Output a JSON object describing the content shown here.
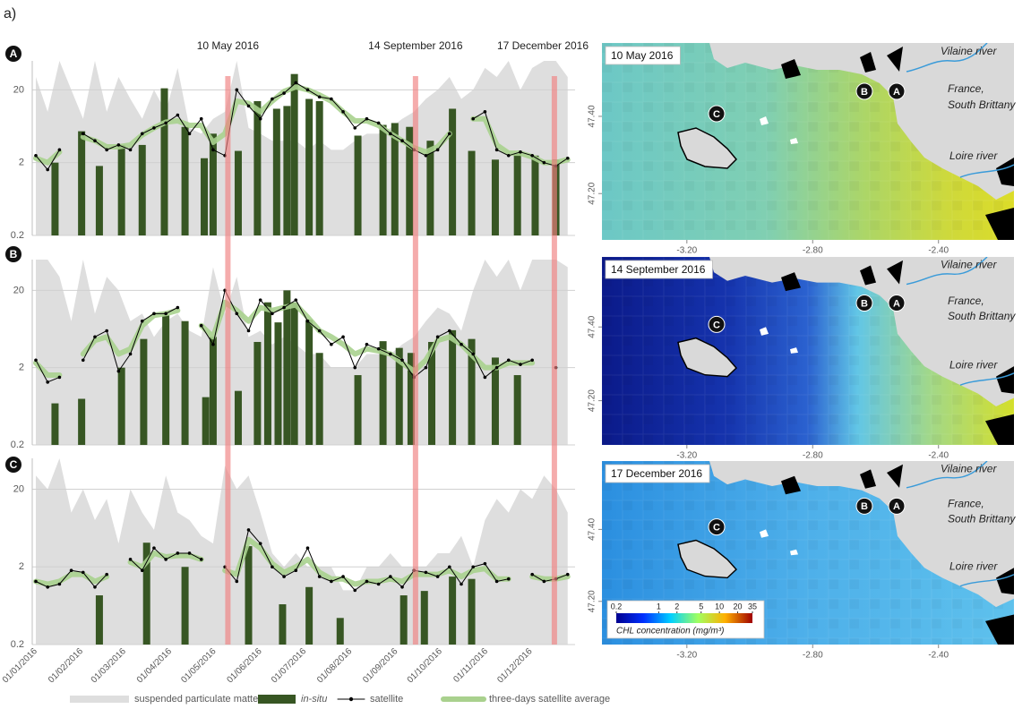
{
  "panel_label": "a)",
  "events": [
    {
      "label": "10 May 2016",
      "date": "10/05/2016"
    },
    {
      "label": "14 September 2016",
      "date": "14/09/2016"
    },
    {
      "label": "17 December 2016",
      "date": "17/12/2016"
    }
  ],
  "chart_data": [
    {
      "type": "combo",
      "label": "A",
      "log": true,
      "grid": true,
      "ylim": [
        0.2,
        50
      ],
      "yticks": [
        0.2,
        2,
        20
      ],
      "xlim": [
        "01/01/2016",
        "31/12/2016"
      ],
      "x": [
        "01/01/2016",
        "09/01/2016",
        "17/01/2016",
        "25/01/2016",
        "02/02/2016",
        "10/02/2016",
        "18/02/2016",
        "26/02/2016",
        "05/03/2016",
        "13/03/2016",
        "21/03/2016",
        "29/03/2016",
        "06/04/2016",
        "14/04/2016",
        "22/04/2016",
        "30/04/2016",
        "08/05/2016",
        "16/05/2016",
        "24/05/2016",
        "01/06/2016",
        "09/06/2016",
        "17/06/2016",
        "25/06/2016",
        "03/07/2016",
        "11/07/2016",
        "19/07/2016",
        "27/07/2016",
        "04/08/2016",
        "12/08/2016",
        "20/08/2016",
        "28/08/2016",
        "05/09/2016",
        "13/09/2016",
        "21/09/2016",
        "29/09/2016",
        "07/10/2016",
        "15/10/2016",
        "23/10/2016",
        "31/10/2016",
        "08/11/2016",
        "16/11/2016",
        "24/11/2016",
        "02/12/2016",
        "10/12/2016",
        "18/12/2016",
        "26/12/2016"
      ],
      "series": [
        {
          "name": "suspended particulate matter",
          "type": "area",
          "color": "#dedede",
          "values": [
            30,
            10,
            50,
            20,
            8,
            50,
            10,
            30,
            15,
            8,
            20,
            10,
            40,
            6,
            5,
            8,
            10,
            50,
            6,
            5,
            4,
            4,
            4,
            3,
            4,
            3,
            3,
            4,
            5,
            5,
            6,
            8,
            10,
            15,
            20,
            30,
            15,
            20,
            40,
            30,
            50,
            20,
            40,
            50,
            50,
            30
          ]
        },
        {
          "name": "in-situ",
          "type": "bar",
          "color": "#375623",
          "x": [
            "14/01/2016",
            "01/02/2016",
            "13/02/2016",
            "28/02/2016",
            "13/03/2016",
            "28/03/2016",
            "11/04/2016",
            "24/04/2016",
            "30/04/2016",
            "17/05/2016",
            "30/05/2016",
            "12/06/2016",
            "19/06/2016",
            "24/06/2016",
            "04/07/2016",
            "11/07/2016",
            "06/08/2016",
            "23/08/2016",
            "31/08/2016",
            "10/09/2016",
            "24/09/2016",
            "09/10/2016",
            "22/10/2016",
            "07/11/2016",
            "22/11/2016",
            "04/12/2016",
            "18/12/2016"
          ],
          "values": [
            2.0,
            5.4,
            1.8,
            3.5,
            3.5,
            21,
            6.2,
            2.3,
            5.0,
            2.9,
            14,
            11,
            12,
            33,
            15,
            14,
            4.7,
            6.6,
            7,
            6.2,
            4.0,
            11,
            2.9,
            2.2,
            2.7,
            2.5,
            2.2
          ]
        },
        {
          "name": "satellite",
          "type": "line",
          "color": "#000000",
          "linewidth": 1,
          "markers": true,
          "values": [
            2.5,
            1.6,
            3,
            null,
            5,
            4,
            3,
            3.5,
            3,
            5,
            6,
            7,
            9,
            5,
            8,
            3,
            2.5,
            20,
            12,
            8,
            15,
            18,
            25,
            20,
            16,
            15,
            10,
            6,
            8,
            7,
            5,
            4,
            3,
            2.5,
            3,
            5,
            null,
            8,
            10,
            3,
            2.5,
            2.8,
            2.5,
            2,
            1.8,
            2.3
          ]
        },
        {
          "name": "three-days satellite average",
          "type": "line",
          "color": "#a9d18e",
          "linewidth": 6,
          "values": [
            2.3,
            2,
            2.8,
            null,
            4.5,
            4,
            3.3,
            3.3,
            3.5,
            4.8,
            6,
            7.2,
            7.5,
            6.5,
            6.5,
            3.8,
            5,
            14,
            13,
            10,
            14,
            19,
            22,
            20,
            17,
            14,
            10,
            7.5,
            7.5,
            6.5,
            5,
            4,
            3.2,
            2.8,
            3.3,
            5,
            null,
            8,
            8,
            3.5,
            2.7,
            2.7,
            2.4,
            2,
            2,
            2.2
          ]
        }
      ]
    },
    {
      "type": "combo",
      "label": "B",
      "log": true,
      "grid": true,
      "ylim": [
        0.2,
        50
      ],
      "yticks": [
        0.2,
        2,
        20
      ],
      "xlim": [
        "01/01/2016",
        "31/12/2016"
      ],
      "x": [
        "01/01/2016",
        "09/01/2016",
        "17/01/2016",
        "25/01/2016",
        "02/02/2016",
        "10/02/2016",
        "18/02/2016",
        "26/02/2016",
        "05/03/2016",
        "13/03/2016",
        "21/03/2016",
        "29/03/2016",
        "06/04/2016",
        "14/04/2016",
        "22/04/2016",
        "30/04/2016",
        "08/05/2016",
        "16/05/2016",
        "24/05/2016",
        "01/06/2016",
        "09/06/2016",
        "17/06/2016",
        "25/06/2016",
        "03/07/2016",
        "11/07/2016",
        "19/07/2016",
        "27/07/2016",
        "04/08/2016",
        "12/08/2016",
        "20/08/2016",
        "28/08/2016",
        "05/09/2016",
        "13/09/2016",
        "21/09/2016",
        "29/09/2016",
        "07/10/2016",
        "15/10/2016",
        "23/10/2016",
        "31/10/2016",
        "08/11/2016",
        "16/11/2016",
        "24/11/2016",
        "02/12/2016",
        "10/12/2016",
        "18/12/2016",
        "26/12/2016"
      ],
      "series": [
        {
          "name": "suspended particulate matter",
          "type": "area",
          "color": "#dedede",
          "values": [
            50,
            50,
            30,
            8,
            50,
            10,
            30,
            20,
            8,
            10,
            5,
            8,
            10,
            6,
            5,
            40,
            10,
            30,
            5,
            6,
            4,
            5,
            4,
            3,
            3,
            2,
            2,
            2,
            3,
            3,
            3,
            4,
            5,
            8,
            12,
            10,
            6,
            20,
            50,
            30,
            50,
            20,
            50,
            50,
            50,
            40
          ]
        },
        {
          "name": "in-situ",
          "type": "bar",
          "color": "#375623",
          "x": [
            "14/01/2016",
            "01/02/2016",
            "28/02/2016",
            "14/03/2016",
            "29/03/2016",
            "11/04/2016",
            "25/04/2016",
            "30/04/2016",
            "17/05/2016",
            "30/05/2016",
            "06/06/2016",
            "13/06/2016",
            "19/06/2016",
            "24/06/2016",
            "04/07/2016",
            "11/07/2016",
            "06/08/2016",
            "23/08/2016",
            "03/09/2016",
            "11/09/2016",
            "25/09/2016",
            "09/10/2016",
            "22/10/2016",
            "07/11/2016",
            "22/11/2016"
          ],
          "values": [
            0.69,
            0.79,
            2.0,
            4.7,
            9.5,
            8,
            0.83,
            5,
            1.0,
            4.3,
            14,
            7.7,
            20,
            14,
            8.3,
            3.1,
            1.6,
            4.4,
            3.6,
            3.1,
            4.3,
            6.1,
            4.7,
            2.7,
            1.6
          ]
        },
        {
          "name": "satellite",
          "type": "line",
          "color": "#000000",
          "linewidth": 1,
          "markers": true,
          "values": [
            2.5,
            1.3,
            1.5,
            null,
            2.5,
            5,
            6,
            1.8,
            3,
            8,
            10,
            10,
            12,
            null,
            7,
            4,
            20,
            10,
            6,
            15,
            10,
            12,
            15,
            8,
            6,
            4,
            5,
            2,
            4,
            3.5,
            3,
            2.5,
            1.5,
            2,
            5,
            6,
            4,
            3,
            1.5,
            2,
            2.5,
            2.2,
            2.5,
            null,
            2,
            null
          ]
        },
        {
          "name": "three-days satellite average",
          "type": "line",
          "color": "#a9d18e",
          "linewidth": 6,
          "values": [
            2.3,
            1.6,
            1.6,
            null,
            3,
            4.5,
            5,
            3,
            3.5,
            7,
            9.5,
            10,
            11,
            null,
            7,
            5,
            14,
            11,
            8,
            12,
            11,
            12,
            13,
            9,
            6,
            5,
            4,
            3,
            3.5,
            3.3,
            3,
            2.3,
            1.8,
            2.5,
            4.5,
            5,
            4,
            2.8,
            2,
            2,
            2.3,
            2.3,
            2.3,
            null,
            2,
            null
          ]
        }
      ]
    },
    {
      "type": "combo",
      "label": "C",
      "log": true,
      "grid": true,
      "ylim": [
        0.2,
        50
      ],
      "yticks": [
        0.2,
        2,
        20
      ],
      "xlim": [
        "01/01/2016",
        "31/12/2016"
      ],
      "xticks": [
        "01/01/2016",
        "01/02/2016",
        "01/03/2016",
        "01/04/2016",
        "01/05/2016",
        "01/06/2016",
        "01/07/2016",
        "01/08/2016",
        "01/09/2016",
        "01/10/2016",
        "01/11/2016",
        "01/12/2016"
      ],
      "x": [
        "01/01/2016",
        "09/01/2016",
        "17/01/2016",
        "25/01/2016",
        "02/02/2016",
        "10/02/2016",
        "18/02/2016",
        "26/02/2016",
        "05/03/2016",
        "13/03/2016",
        "21/03/2016",
        "29/03/2016",
        "06/04/2016",
        "14/04/2016",
        "22/04/2016",
        "30/04/2016",
        "08/05/2016",
        "16/05/2016",
        "24/05/2016",
        "01/06/2016",
        "09/06/2016",
        "17/06/2016",
        "25/06/2016",
        "03/07/2016",
        "11/07/2016",
        "19/07/2016",
        "27/07/2016",
        "04/08/2016",
        "12/08/2016",
        "20/08/2016",
        "28/08/2016",
        "05/09/2016",
        "13/09/2016",
        "21/09/2016",
        "29/09/2016",
        "07/10/2016",
        "15/10/2016",
        "23/10/2016",
        "31/10/2016",
        "08/11/2016",
        "16/11/2016",
        "24/11/2016",
        "02/12/2016",
        "10/12/2016",
        "18/12/2016",
        "26/12/2016"
      ],
      "series": [
        {
          "name": "suspended particulate matter",
          "type": "area",
          "color": "#dedede",
          "values": [
            30,
            20,
            50,
            10,
            20,
            8,
            15,
            4,
            20,
            10,
            6,
            30,
            10,
            8,
            5,
            4,
            40,
            20,
            30,
            10,
            3,
            2,
            3,
            2,
            2,
            2,
            1,
            1,
            2,
            2,
            3,
            2,
            2,
            2,
            3,
            3,
            5,
            2,
            8,
            15,
            10,
            20,
            15,
            30,
            20,
            10
          ]
        },
        {
          "name": "in-situ",
          "type": "bar",
          "color": "#375623",
          "x": [
            "13/02/2016",
            "16/03/2016",
            "11/04/2016",
            "24/05/2016",
            "16/06/2016",
            "04/07/2016",
            "25/07/2016",
            "06/09/2016",
            "20/09/2016",
            "09/10/2016",
            "22/10/2016"
          ],
          "values": [
            0.86,
            4.1,
            2.0,
            3.7,
            0.66,
            1.1,
            0.44,
            0.86,
            0.98,
            1.5,
            1.4
          ]
        },
        {
          "name": "satellite",
          "type": "line",
          "color": "#000000",
          "linewidth": 1,
          "markers": true,
          "values": [
            1.3,
            1.1,
            1.2,
            1.8,
            1.7,
            1.1,
            1.6,
            null,
            2.5,
            1.8,
            3.5,
            2.5,
            3,
            3,
            2.5,
            null,
            2,
            1.3,
            6,
            4,
            2,
            1.5,
            1.8,
            3.5,
            1.5,
            1.3,
            1.5,
            1,
            1.3,
            1.2,
            1.5,
            1.1,
            1.8,
            1.7,
            1.5,
            2,
            1.2,
            2,
            2.2,
            1.3,
            1.4,
            null,
            1.6,
            1.3,
            1.4,
            1.6
          ]
        },
        {
          "name": "three-days satellite average",
          "type": "line",
          "color": "#a9d18e",
          "linewidth": 6,
          "values": [
            1.3,
            1.2,
            1.3,
            1.6,
            1.6,
            1.3,
            1.5,
            null,
            2.3,
            2,
            3,
            2.7,
            2.8,
            2.8,
            2.5,
            null,
            1.8,
            1.6,
            4.5,
            3.5,
            2.2,
            1.7,
            2,
            2.5,
            1.7,
            1.4,
            1.4,
            1.2,
            1.3,
            1.3,
            1.4,
            1.3,
            1.6,
            1.6,
            1.6,
            1.8,
            1.5,
            1.8,
            1.9,
            1.4,
            1.4,
            null,
            1.5,
            1.4,
            1.4,
            1.5
          ]
        }
      ]
    },
    {
      "type": "map",
      "title": "10 May 2016",
      "labels": [
        "Vilaine river",
        "France,",
        "South Brittany",
        "Loire river"
      ],
      "stations": [
        "A",
        "B",
        "C"
      ],
      "lonlim": [
        -3.47,
        -2.16
      ],
      "latlim": [
        47.08,
        47.59
      ],
      "lonticks": [
        {
          "value": -3.2,
          "label": "-3.20"
        },
        {
          "value": -2.8,
          "label": "-2.80"
        },
        {
          "value": -2.4,
          "label": "-2.40"
        }
      ],
      "latticks": [
        {
          "value": 47.4,
          "label": "47.40"
        },
        {
          "value": 47.2,
          "label": "47.20"
        }
      ]
    },
    {
      "type": "map",
      "title": "14 September 2016",
      "labels": [
        "Vilaine river",
        "France,",
        "South Brittany",
        "Loire river"
      ],
      "stations": [
        "A",
        "B",
        "C"
      ],
      "lonlim": [
        -3.47,
        -2.16
      ],
      "latlim": [
        47.08,
        47.59
      ],
      "lonticks": [
        {
          "value": -3.2,
          "label": "-3.20"
        },
        {
          "value": -2.8,
          "label": "-2.80"
        },
        {
          "value": -2.4,
          "label": "-2.40"
        }
      ],
      "latticks": [
        {
          "value": 47.4,
          "label": "47.40"
        },
        {
          "value": 47.2,
          "label": "47.20"
        }
      ]
    },
    {
      "type": "map",
      "title": "17 December 2016",
      "labels": [
        "Vilaine river",
        "France,",
        "South Brittany",
        "Loire river"
      ],
      "stations": [
        "A",
        "B",
        "C"
      ],
      "lonlim": [
        -3.47,
        -2.16
      ],
      "latlim": [
        47.08,
        47.59
      ],
      "lonticks": [
        {
          "value": -3.2,
          "label": "-3.20"
        },
        {
          "value": -2.8,
          "label": "-2.80"
        },
        {
          "value": -2.4,
          "label": "-2.40"
        }
      ],
      "latticks": [
        {
          "value": 47.4,
          "label": "47.40"
        },
        {
          "value": 47.2,
          "label": "47.20"
        }
      ],
      "colorbar": {
        "label": "CHL concentration (mg/m³)",
        "log": true,
        "lim": [
          0.2,
          35
        ],
        "ticks": [
          0.2,
          1,
          2,
          5,
          10,
          20,
          35
        ]
      }
    }
  ]
}
